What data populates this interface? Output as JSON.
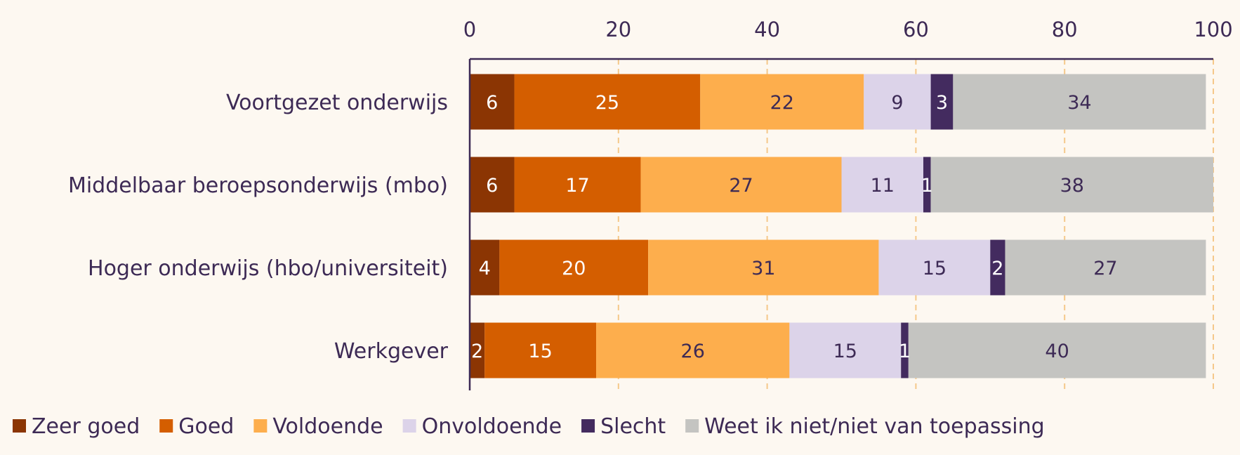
{
  "chart_data": {
    "type": "bar",
    "orientation": "horizontal",
    "stacked": true,
    "title": "",
    "xlabel": "",
    "ylabel": "",
    "xlim": [
      0,
      100
    ],
    "ticks": [
      0,
      20,
      40,
      60,
      80,
      100
    ],
    "grid": "vertical-dashed",
    "legend_position": "bottom",
    "categories": [
      "Voortgezet onderwijs",
      "Middelbaar beroepsonderwijs (mbo)",
      "Hoger onderwijs (hbo/universiteit)",
      "Werkgever"
    ],
    "series": [
      {
        "name": "Zeer goed",
        "color": "#8b3503",
        "label_color": "#ffffff",
        "values": [
          6,
          6,
          4,
          2
        ]
      },
      {
        "name": "Goed",
        "color": "#d45e00",
        "label_color": "#ffffff",
        "values": [
          25,
          17,
          20,
          15
        ]
      },
      {
        "name": "Voldoende",
        "color": "#fdae4d",
        "label_color": "#3d2a55",
        "values": [
          22,
          27,
          31,
          26
        ]
      },
      {
        "name": "Onvoldoende",
        "color": "#dcd3e9",
        "label_color": "#3d2a55",
        "values": [
          9,
          11,
          15,
          15
        ]
      },
      {
        "name": "Slecht",
        "color": "#432b5f",
        "label_color": "#ffffff",
        "values": [
          3,
          1,
          2,
          1
        ]
      },
      {
        "name": "Weet ik niet/niet van toepassing",
        "color": "#c4c4c1",
        "label_color": "#3d2a55",
        "values": [
          34,
          38,
          27,
          40
        ]
      }
    ]
  }
}
